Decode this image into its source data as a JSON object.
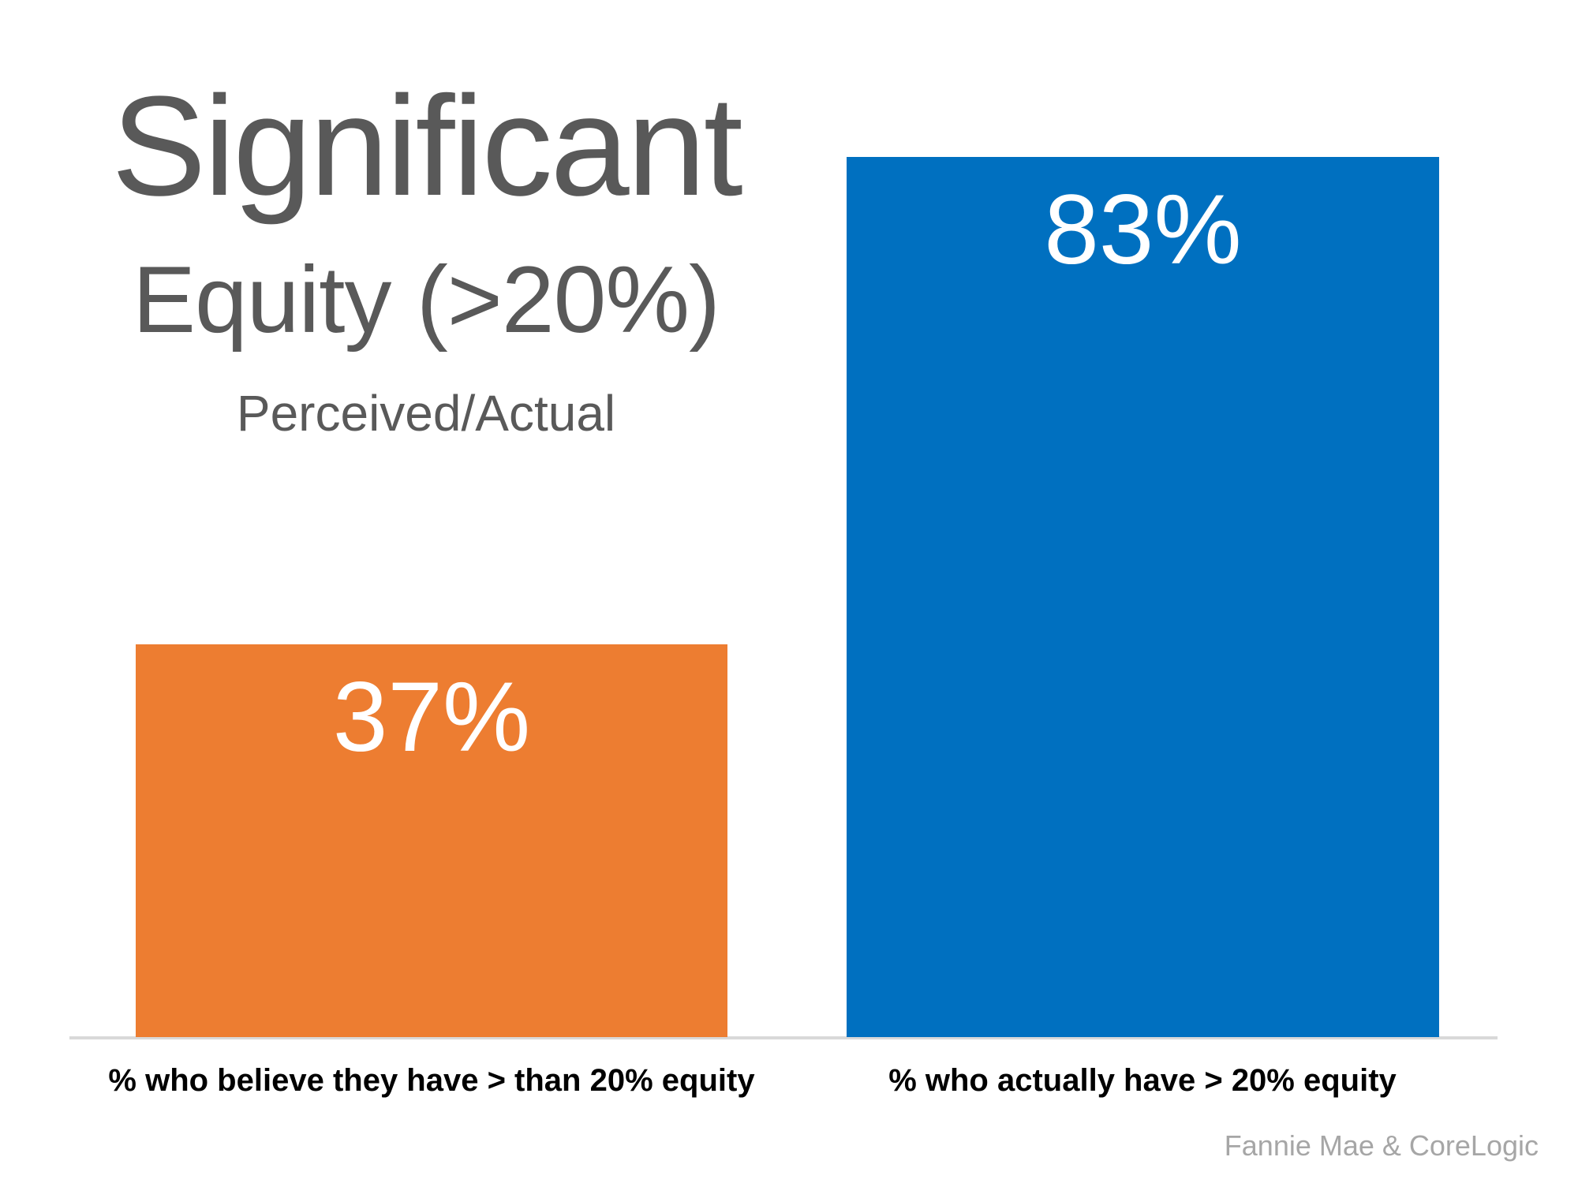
{
  "slide": {
    "title": "Significant",
    "subtitle": "Equity (>20%)",
    "tagline": "Perceived/Actual",
    "source": "Fannie Mae & CoreLogic"
  },
  "chart_data": {
    "type": "bar",
    "title": "Significant",
    "subtitle": "Equity (>20%)",
    "note": "Perceived/Actual",
    "categories": [
      "% who believe they have > than 20% equity",
      "% who actually have > 20% equity"
    ],
    "values": [
      37,
      83
    ],
    "value_labels": [
      "37%",
      "83%"
    ],
    "series_colors": [
      "#ED7D31",
      "#0070C0"
    ],
    "ylim": [
      0,
      100
    ],
    "grid": false,
    "legend": false,
    "value_label_position": "inside-top",
    "value_label_color": "#FFFFFF",
    "source": "Fannie Mae & CoreLogic"
  },
  "colors": {
    "title_gray": "#595959",
    "category_label_black": "#000000",
    "source_gray": "#A6A6A6",
    "baseline_gray": "#D9D9D9",
    "bar_orange": "#ED7D31",
    "bar_blue": "#0070C0"
  }
}
